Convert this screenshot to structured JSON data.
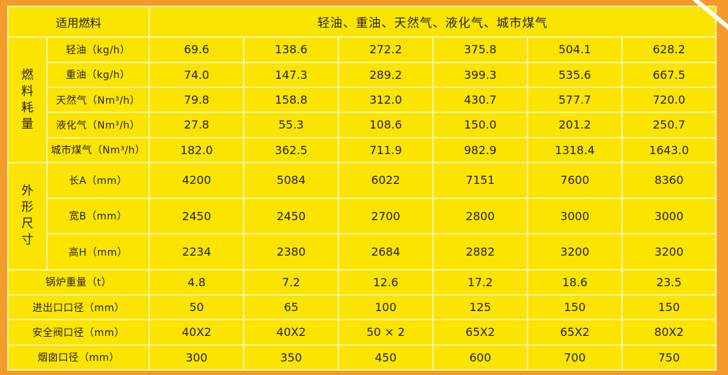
{
  "header": {
    "fuel_label": "适用燃料",
    "fuel_value": "轻油、重油、天然气、液化气、城市煤气"
  },
  "groups": {
    "fuel_consumption": [
      "燃",
      "料",
      "耗",
      "量"
    ],
    "dimensions": [
      "外",
      "形",
      "尺",
      "寸"
    ]
  },
  "rows": [
    {
      "label": "轻油（kg/h）",
      "values": [
        "69.6",
        "138.6",
        "272.2",
        "375.8",
        "504.1",
        "628.2"
      ]
    },
    {
      "label": "重油（kg/h）",
      "values": [
        "74.0",
        "147.3",
        "289.2",
        "399.3",
        "535.6",
        "667.5"
      ]
    },
    {
      "label": "天然气（Nm³/h）",
      "values": [
        "79.8",
        "158.8",
        "312.0",
        "430.7",
        "577.7",
        "720.0"
      ]
    },
    {
      "label": "液化气（Nm³/h）",
      "values": [
        "27.8",
        "55.3",
        "108.6",
        "150.0",
        "201.2",
        "250.7"
      ]
    },
    {
      "label": "城市煤气（Nm³/h）",
      "values": [
        "182.0",
        "362.5",
        "711.9",
        "982.9",
        "1318.4",
        "1643.0"
      ]
    },
    {
      "label": "长A（mm）",
      "values": [
        "4200",
        "5084",
        "6022",
        "7151",
        "7600",
        "8360"
      ]
    },
    {
      "label": "宽B（mm）",
      "values": [
        "2450",
        "2450",
        "2700",
        "2800",
        "3000",
        "3000"
      ]
    },
    {
      "label": "高H（mm）",
      "values": [
        "2234",
        "2380",
        "2684",
        "2882",
        "3200",
        "3200"
      ]
    },
    {
      "label": "锅炉重量（t）",
      "values": [
        "4.8",
        "7.2",
        "12.6",
        "17.2",
        "18.6",
        "23.5"
      ]
    },
    {
      "label": "进出口口径（mm）",
      "values": [
        "50",
        "65",
        "100",
        "125",
        "150",
        "150"
      ]
    },
    {
      "label": "安全阀口径（mm）",
      "values": [
        "40X2",
        "40X2",
        "50 × 2",
        "65X2",
        "65X2",
        "80X2"
      ]
    },
    {
      "label": "烟囱口径（mm）",
      "values": [
        "300",
        "350",
        "450",
        "600",
        "700",
        "750"
      ]
    }
  ]
}
